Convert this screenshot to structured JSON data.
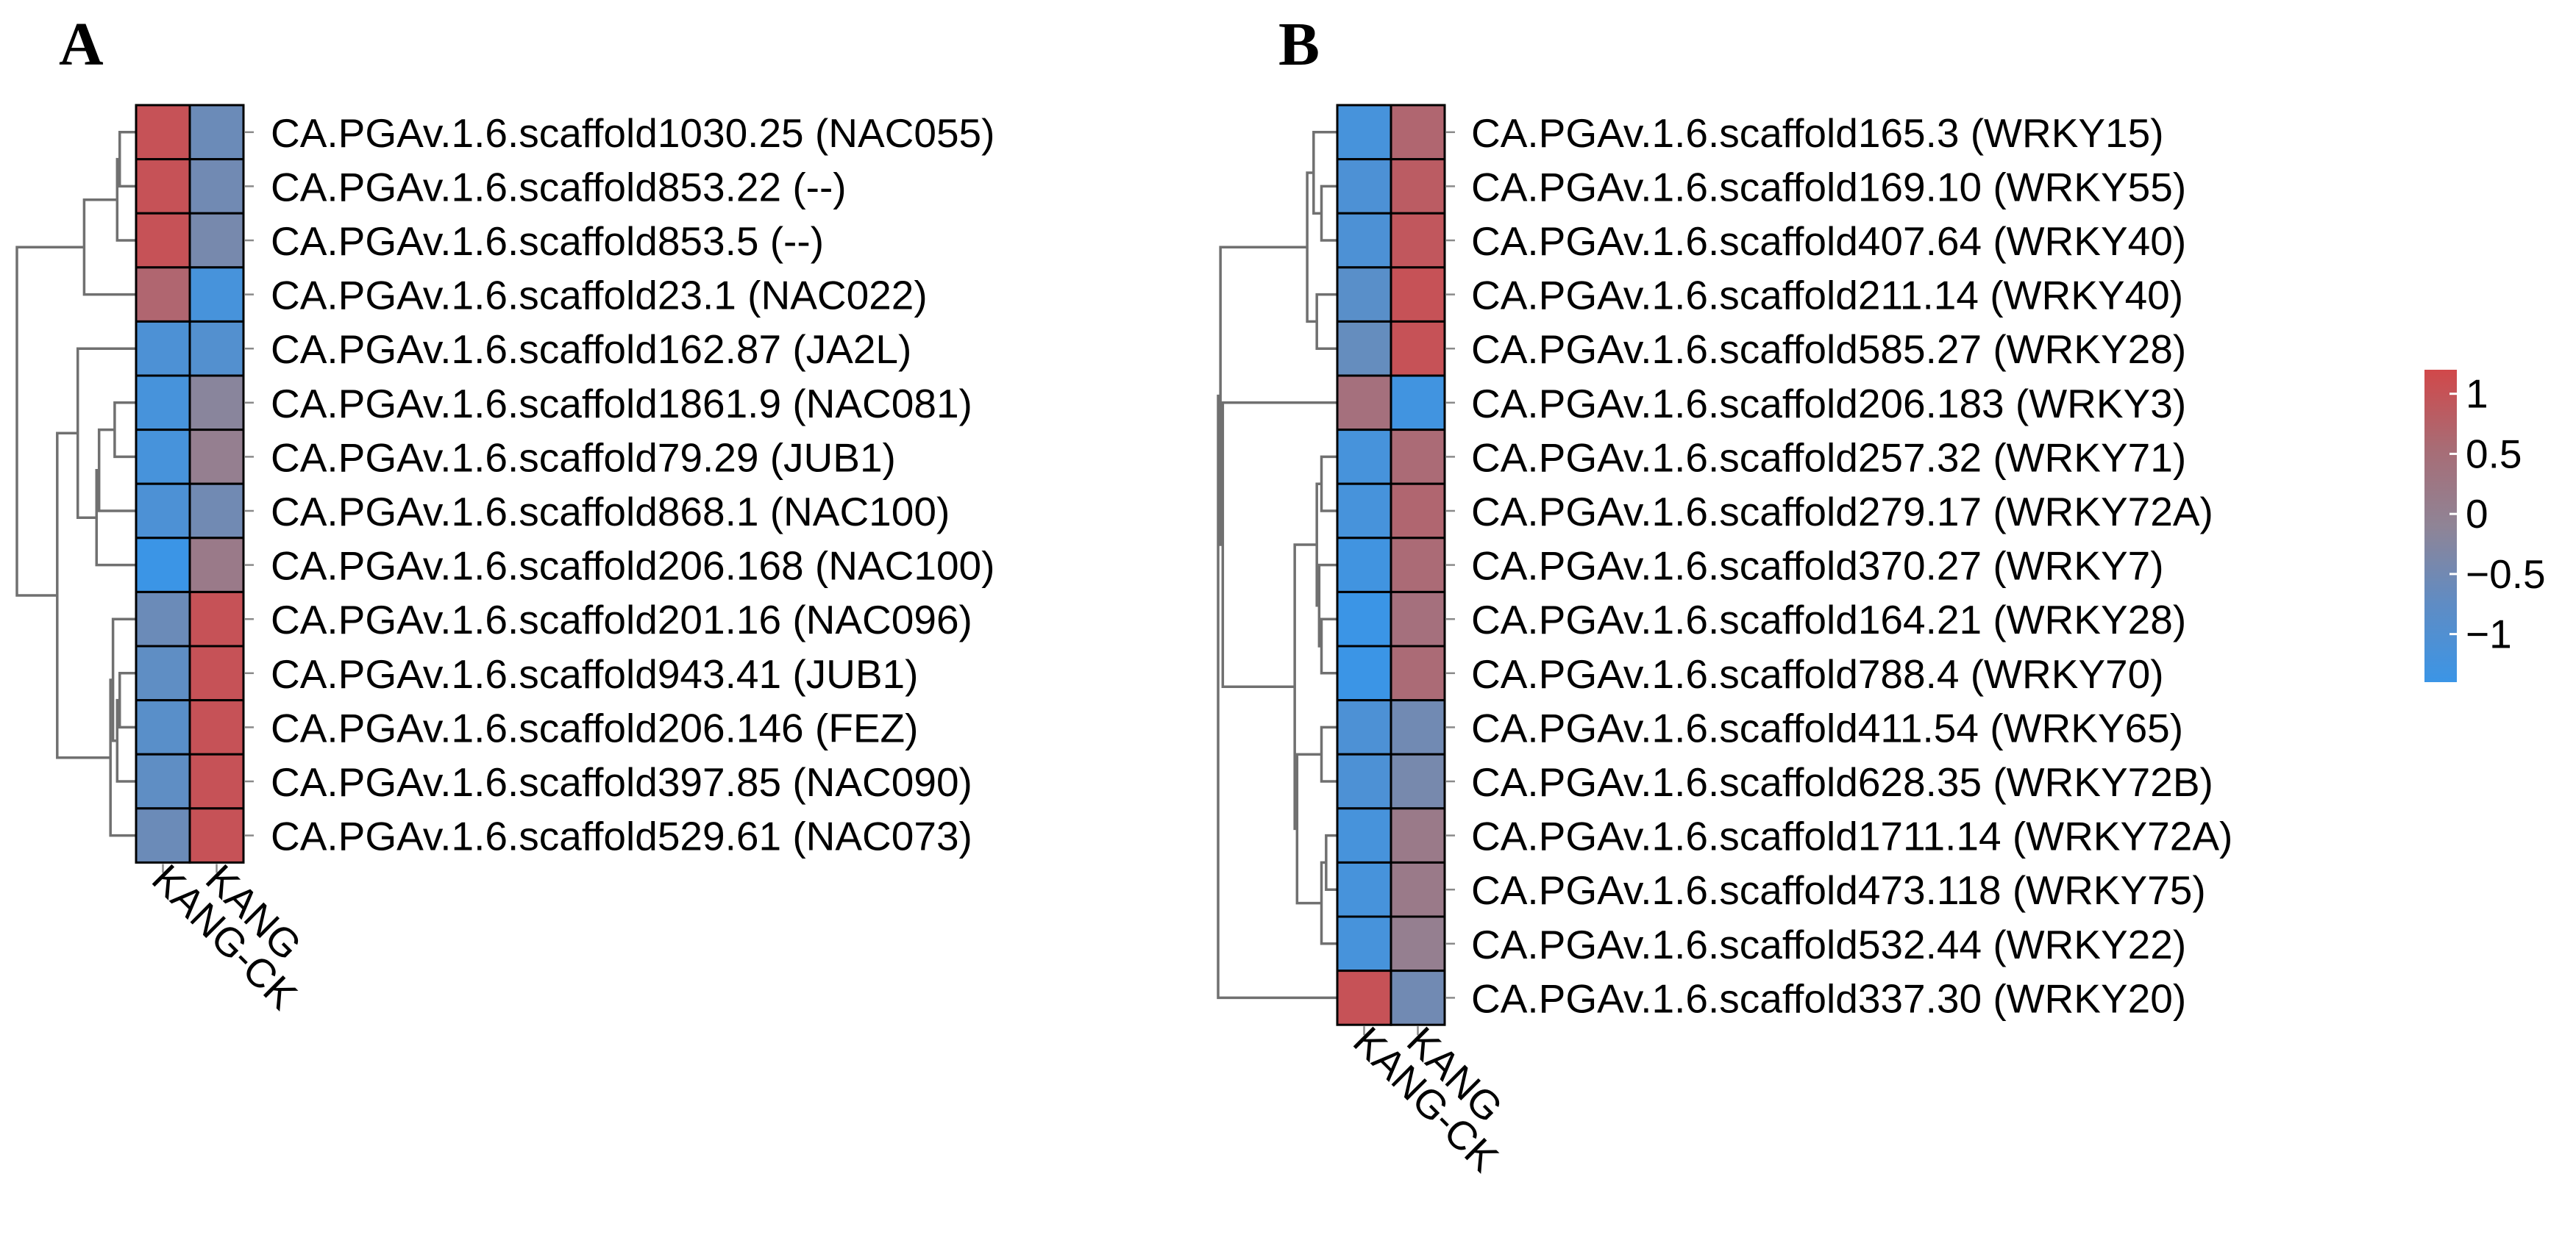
{
  "chart_data": [
    {
      "type": "heatmap",
      "panel": "A",
      "columns": [
        "KANG-CK",
        "KANG"
      ],
      "rows": [
        "CA.PGAv.1.6.scaffold1030.25 (NAC055)",
        "CA.PGAv.1.6.scaffold853.22 (--)",
        "CA.PGAv.1.6.scaffold853.5 (--)",
        "CA.PGAv.1.6.scaffold23.1 (NAC022)",
        "CA.PGAv.1.6.scaffold162.87 (JA2L)",
        "CA.PGAv.1.6.scaffold1861.9 (NAC081)",
        "CA.PGAv.1.6.scaffold79.29 (JUB1)",
        "CA.PGAv.1.6.scaffold868.1 (NAC100)",
        "CA.PGAv.1.6.scaffold206.168 (NAC100)",
        "CA.PGAv.1.6.scaffold201.16 (NAC096)",
        "CA.PGAv.1.6.scaffold943.41 (JUB1)",
        "CA.PGAv.1.6.scaffold206.146 (FEZ)",
        "CA.PGAv.1.6.scaffold397.85 (NAC090)",
        "CA.PGAv.1.6.scaffold529.61 (NAC073)"
      ],
      "values": [
        [
          1.0,
          -0.6
        ],
        [
          1.0,
          -0.5
        ],
        [
          1.0,
          -0.4
        ],
        [
          0.6,
          -1.2
        ],
        [
          -1.1,
          -1.0
        ],
        [
          -1.2,
          -0.1
        ],
        [
          -1.2,
          0.1
        ],
        [
          -1.1,
          -0.5
        ],
        [
          -1.4,
          0.2
        ],
        [
          -0.6,
          1.0
        ],
        [
          -0.8,
          1.0
        ],
        [
          -0.9,
          1.0
        ],
        [
          -0.8,
          1.0
        ],
        [
          -0.6,
          1.0
        ]
      ],
      "color_scale": {
        "min": -1.4,
        "max": 1.2,
        "low": "#3b95e6",
        "mid": "#8f8496",
        "high": "#d1484a"
      }
    },
    {
      "type": "heatmap",
      "panel": "B",
      "columns": [
        "KANG-CK",
        "KANG"
      ],
      "rows": [
        "CA.PGAv.1.6.scaffold165.3 (WRKY15)",
        "CA.PGAv.1.6.scaffold169.10 (WRKY55)",
        "CA.PGAv.1.6.scaffold407.64 (WRKY40)",
        "CA.PGAv.1.6.scaffold211.14 (WRKY40)",
        "CA.PGAv.1.6.scaffold585.27 (WRKY28)",
        "CA.PGAv.1.6.scaffold206.183 (WRKY3)",
        "CA.PGAv.1.6.scaffold257.32 (WRKY71)",
        "CA.PGAv.1.6.scaffold279.17 (WRKY72A)",
        "CA.PGAv.1.6.scaffold370.27 (WRKY7)",
        "CA.PGAv.1.6.scaffold164.21 (WRKY28)",
        "CA.PGAv.1.6.scaffold788.4 (WRKY70)",
        "CA.PGAv.1.6.scaffold411.54 (WRKY65)",
        "CA.PGAv.1.6.scaffold628.35 (WRKY72B)",
        "CA.PGAv.1.6.scaffold1711.14 (WRKY72A)",
        "CA.PGAv.1.6.scaffold473.118 (WRKY75)",
        "CA.PGAv.1.6.scaffold532.44 (WRKY22)",
        "CA.PGAv.1.6.scaffold337.30 (WRKY20)"
      ],
      "values": [
        [
          -1.2,
          0.6
        ],
        [
          -1.1,
          0.8
        ],
        [
          -1.1,
          0.9
        ],
        [
          -0.9,
          1.0
        ],
        [
          -0.7,
          1.0
        ],
        [
          0.4,
          -1.3
        ],
        [
          -1.2,
          0.5
        ],
        [
          -1.2,
          0.6
        ],
        [
          -1.3,
          0.5
        ],
        [
          -1.4,
          0.4
        ],
        [
          -1.4,
          0.5
        ],
        [
          -1.1,
          -0.5
        ],
        [
          -1.1,
          -0.4
        ],
        [
          -1.2,
          0.2
        ],
        [
          -1.2,
          0.2
        ],
        [
          -1.2,
          0.1
        ],
        [
          1.0,
          -0.5
        ]
      ],
      "color_scale": {
        "min": -1.4,
        "max": 1.2,
        "low": "#3b95e6",
        "mid": "#8f8496",
        "high": "#d1484a"
      }
    }
  ],
  "legend": {
    "ticks": [
      {
        "label": "1",
        "value": 1
      },
      {
        "label": "0.5",
        "value": 0.5
      },
      {
        "label": "0",
        "value": 0
      },
      {
        "label": "−0.5",
        "value": -0.5
      },
      {
        "label": "−1",
        "value": -1
      }
    ],
    "range": [
      -1.4,
      1.2
    ],
    "gradient": [
      "#d1484a",
      "#a86c75",
      "#8f8496",
      "#5f8cc4",
      "#3b95e6"
    ]
  }
}
